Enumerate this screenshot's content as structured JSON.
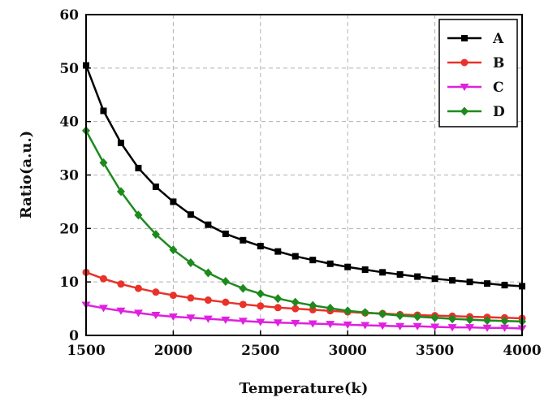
{
  "chart_data": {
    "type": "line",
    "xlabel": "Temperature(k)",
    "ylabel": "Ratio(a.u.)",
    "xlim": [
      1500,
      4000
    ],
    "ylim": [
      0,
      60
    ],
    "xticks": [
      "1500",
      "2000",
      "2500",
      "3000",
      "3500",
      "4000"
    ],
    "yticks": [
      "0",
      "10",
      "20",
      "30",
      "40",
      "50",
      "60"
    ],
    "grid": true,
    "grid_style": "dashed",
    "legend_position": "top-right",
    "x": [
      1500,
      1600,
      1700,
      1800,
      1900,
      2000,
      2100,
      2200,
      2300,
      2400,
      2500,
      2600,
      2700,
      2800,
      2900,
      3000,
      3100,
      3200,
      3300,
      3400,
      3500,
      3600,
      3700,
      3800,
      3900,
      4000
    ],
    "series": [
      {
        "name": "A",
        "color": "#000000",
        "marker": "square",
        "values": [
          50.5,
          42,
          36,
          31.3,
          27.8,
          25,
          22.6,
          20.7,
          19,
          17.8,
          16.7,
          15.7,
          14.8,
          14.1,
          13.4,
          12.8,
          12.3,
          11.8,
          11.4,
          11,
          10.6,
          10.3,
          10,
          9.7,
          9.4,
          9.2
        ]
      },
      {
        "name": "B",
        "color": "#e8322a",
        "marker": "circle",
        "values": [
          11.8,
          10.6,
          9.6,
          8.8,
          8.1,
          7.5,
          7,
          6.6,
          6.2,
          5.8,
          5.5,
          5.2,
          5,
          4.8,
          4.6,
          4.4,
          4.2,
          4.1,
          3.9,
          3.8,
          3.7,
          3.6,
          3.5,
          3.4,
          3.3,
          3.2
        ]
      },
      {
        "name": "C",
        "color": "#e020e0",
        "marker": "triangle-down",
        "values": [
          5.7,
          5.1,
          4.6,
          4.2,
          3.8,
          3.5,
          3.3,
          3.1,
          2.9,
          2.7,
          2.5,
          2.4,
          2.3,
          2.2,
          2.1,
          2,
          1.9,
          1.8,
          1.7,
          1.7,
          1.6,
          1.5,
          1.5,
          1.4,
          1.4,
          1.3
        ]
      },
      {
        "name": "D",
        "color": "#1e8a1e",
        "marker": "diamond",
        "values": [
          38.3,
          32.3,
          26.9,
          22.5,
          18.9,
          16,
          13.6,
          11.7,
          10.1,
          8.8,
          7.8,
          6.9,
          6.2,
          5.6,
          5.1,
          4.6,
          4.3,
          4,
          3.7,
          3.5,
          3.3,
          3.1,
          2.95,
          2.8,
          2.7,
          2.6
        ]
      }
    ]
  }
}
